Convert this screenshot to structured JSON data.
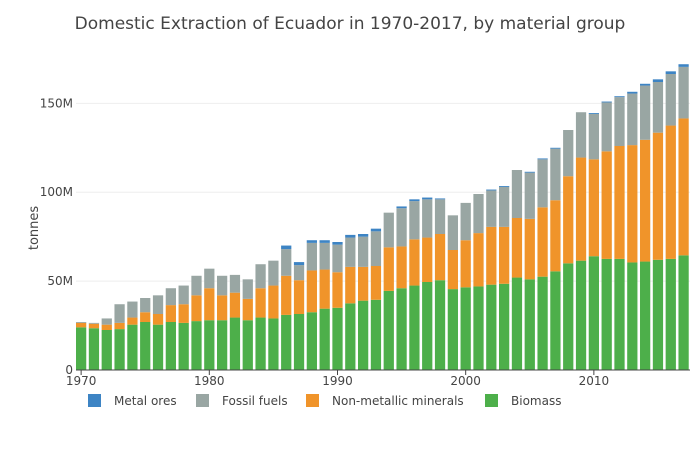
{
  "chart_data": {
    "type": "bar",
    "stacked": true,
    "title": "Domestic Extraction of Ecuador in 1970-2017, by material group",
    "xlabel": "",
    "ylabel": "tonnes",
    "x": [
      1970,
      1971,
      1972,
      1973,
      1974,
      1975,
      1976,
      1977,
      1978,
      1979,
      1980,
      1981,
      1982,
      1983,
      1984,
      1985,
      1986,
      1987,
      1988,
      1989,
      1990,
      1991,
      1992,
      1993,
      1994,
      1995,
      1996,
      1997,
      1998,
      1999,
      2000,
      2001,
      2002,
      2003,
      2004,
      2005,
      2006,
      2007,
      2008,
      2009,
      2010,
      2011,
      2012,
      2013,
      2014,
      2015,
      2016,
      2017
    ],
    "xticks": [
      1970,
      1980,
      1990,
      2000,
      2010
    ],
    "xtick_labels": [
      "1970",
      "1980",
      "1990",
      "2000",
      "2010"
    ],
    "ylim": [
      0,
      180000000
    ],
    "yticks": [
      0,
      50000000,
      100000000,
      150000000
    ],
    "ytick_labels": [
      "0",
      "50M",
      "100M",
      "150M"
    ],
    "grid": true,
    "legend_position": "bottom",
    "series": [
      {
        "name": "Biomass",
        "color": "#4daf4a",
        "values": [
          24000000,
          23500000,
          22500000,
          23000000,
          25500000,
          27000000,
          25500000,
          27000000,
          26500000,
          27500000,
          28000000,
          28000000,
          29500000,
          28000000,
          29500000,
          29000000,
          31000000,
          31500000,
          32500000,
          34500000,
          35000000,
          37500000,
          39000000,
          39500000,
          44500000,
          46000000,
          47500000,
          49500000,
          50500000,
          45500000,
          46500000,
          47000000,
          48000000,
          48500000,
          52000000,
          51000000,
          52500000,
          55500000,
          60000000,
          61500000,
          64000000,
          62500000,
          62500000,
          60500000,
          61000000,
          62000000,
          62500000,
          64500000
        ]
      },
      {
        "name": "Non-metallic minerals",
        "color": "#f0942a",
        "values": [
          2500000,
          2500000,
          3000000,
          3500000,
          4000000,
          5500000,
          6000000,
          9500000,
          10500000,
          14500000,
          18000000,
          14000000,
          14000000,
          12000000,
          16500000,
          18500000,
          22000000,
          19000000,
          23500000,
          22000000,
          20000000,
          20500000,
          19000000,
          19000000,
          24500000,
          23500000,
          26000000,
          25000000,
          26000000,
          22000000,
          26500000,
          30000000,
          32500000,
          32000000,
          33500000,
          34000000,
          39000000,
          40000000,
          49000000,
          58000000,
          54500000,
          60500000,
          63500000,
          66000000,
          68500000,
          71500000,
          75000000,
          77000000
        ]
      },
      {
        "name": "Fossil fuels",
        "color": "#99a6a3",
        "values": [
          500000,
          500000,
          3500000,
          10500000,
          9000000,
          8000000,
          10500000,
          9500000,
          10500000,
          11000000,
          11000000,
          11000000,
          10000000,
          11000000,
          13500000,
          14000000,
          15000000,
          8500000,
          15500000,
          15000000,
          15500000,
          16500000,
          17000000,
          19500000,
          19500000,
          21500000,
          21500000,
          21500000,
          19500000,
          19500000,
          21000000,
          22000000,
          20500000,
          22500000,
          27000000,
          26000000,
          27000000,
          29000000,
          26000000,
          25500000,
          25500000,
          27500000,
          27500000,
          29000000,
          30500000,
          28500000,
          29000000,
          29000000
        ]
      },
      {
        "name": "Metal ores",
        "color": "#3d84c4",
        "values": [
          0,
          0,
          0,
          0,
          0,
          0,
          0,
          0,
          0,
          0,
          0,
          0,
          0,
          0,
          0,
          0,
          2000000,
          1700000,
          1500000,
          1500000,
          1500000,
          1500000,
          1500000,
          1500000,
          0,
          1000000,
          1000000,
          1000000,
          500000,
          0,
          0,
          0,
          500000,
          500000,
          0,
          500000,
          500000,
          500000,
          0,
          0,
          500000,
          500000,
          500000,
          1000000,
          1000000,
          1500000,
          1500000,
          1500000
        ]
      }
    ],
    "legend_order": [
      "Metal ores",
      "Fossil fuels",
      "Non-metallic minerals",
      "Biomass"
    ]
  }
}
